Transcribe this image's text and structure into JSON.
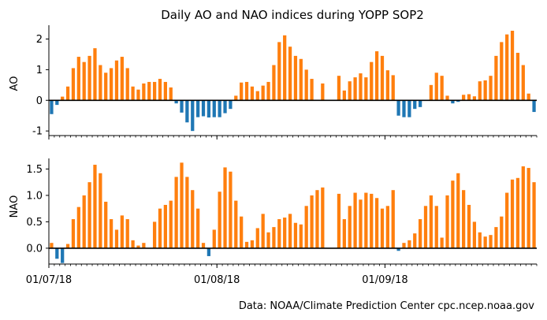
{
  "title": "Daily AO and NAO indices during YOPP SOP2",
  "source": "Data: NOAA/Climate Prediction Center cpc.ncep.noaa.gov",
  "colors": {
    "positive": "#ff7f0e",
    "negative": "#1f77b4",
    "zero_line": "#000000"
  },
  "x_ticks": [
    "01/07/18",
    "01/08/18",
    "01/09/18"
  ],
  "chart_data": [
    {
      "type": "bar",
      "ylabel": "AO",
      "ylim": [
        -1.15,
        2.45
      ],
      "yticks": [
        -1,
        0,
        1,
        2
      ],
      "x_start": "2018-07-01",
      "x_end": "2018-09-30",
      "x_major_ticks": [
        "2018-07-01",
        "2018-08-01",
        "2018-09-01"
      ],
      "x_minor": "daily",
      "values": [
        -0.45,
        -0.15,
        0.12,
        0.45,
        1.05,
        1.42,
        1.25,
        1.45,
        1.7,
        1.15,
        0.9,
        1.05,
        1.3,
        1.42,
        1.05,
        0.45,
        0.35,
        0.55,
        0.6,
        0.6,
        0.7,
        0.6,
        0.42,
        -0.1,
        -0.4,
        -0.72,
        -1.0,
        -0.55,
        -0.52,
        -0.56,
        -0.55,
        -0.55,
        -0.42,
        -0.28,
        0.15,
        0.58,
        0.6,
        0.45,
        0.3,
        0.48,
        0.6,
        1.15,
        1.9,
        2.12,
        1.75,
        1.45,
        1.35,
        1.0,
        0.7,
        null,
        0.55,
        null,
        null,
        0.8,
        0.32,
        0.62,
        0.75,
        0.88,
        0.75,
        1.25,
        1.6,
        1.45,
        0.98,
        0.82,
        -0.5,
        -0.55,
        -0.55,
        -0.28,
        -0.22,
        null,
        0.5,
        0.9,
        0.8,
        0.15,
        -0.1,
        -0.05,
        0.18,
        0.2,
        0.13,
        0.62,
        0.65,
        0.8,
        1.45,
        1.9,
        2.15,
        2.27,
        1.55,
        1.15,
        0.22,
        -0.38
      ]
    },
    {
      "type": "bar",
      "ylabel": "NAO",
      "ylim": [
        -0.3,
        1.7
      ],
      "yticks": [
        0.0,
        0.5,
        1.0,
        1.5
      ],
      "x_start": "2018-07-01",
      "x_end": "2018-09-30",
      "x_major_ticks": [
        "2018-07-01",
        "2018-08-01",
        "2018-09-01"
      ],
      "x_minor": "daily",
      "values": [
        0.1,
        -0.2,
        -0.28,
        0.08,
        0.55,
        0.78,
        1.0,
        1.25,
        1.58,
        1.42,
        0.88,
        0.55,
        0.35,
        0.62,
        0.55,
        0.15,
        0.05,
        0.1,
        null,
        0.5,
        0.75,
        0.82,
        0.9,
        1.35,
        1.62,
        1.35,
        1.1,
        0.75,
        0.1,
        -0.15,
        0.35,
        1.07,
        1.53,
        1.45,
        0.9,
        0.6,
        0.12,
        0.15,
        0.38,
        0.65,
        0.3,
        0.4,
        0.55,
        0.58,
        0.65,
        0.48,
        0.45,
        0.8,
        1.0,
        1.1,
        1.15,
        null,
        null,
        1.03,
        0.55,
        0.8,
        1.05,
        0.92,
        1.05,
        1.03,
        0.95,
        0.75,
        0.8,
        1.1,
        -0.05,
        0.1,
        0.15,
        0.28,
        0.55,
        0.8,
        1.0,
        0.8,
        0.2,
        1.0,
        1.28,
        1.42,
        1.1,
        0.82,
        0.5,
        0.3,
        0.22,
        0.25,
        0.4,
        0.6,
        1.05,
        1.3,
        1.33,
        1.55,
        1.52,
        1.25
      ]
    }
  ]
}
